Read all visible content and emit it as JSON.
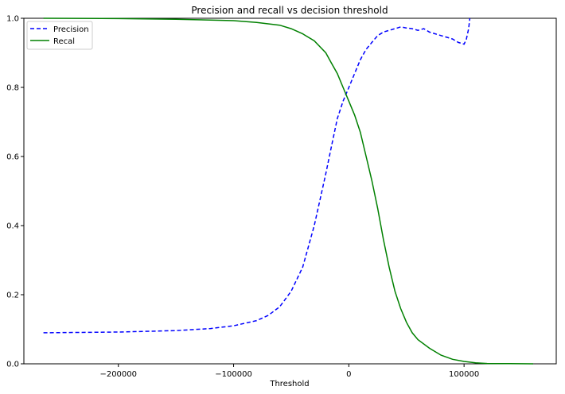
{
  "chart_data": {
    "type": "line",
    "title": "Precision and recall vs decision threshold",
    "xlabel": "Threshold",
    "ylabel": "",
    "xlim": [
      -282000,
      180000
    ],
    "ylim": [
      0,
      1
    ],
    "x_ticks": [
      -200000,
      -100000,
      0,
      100000
    ],
    "x_tick_labels": [
      "−200000",
      "−100000",
      "0",
      "100000"
    ],
    "y_ticks": [
      0.0,
      0.2,
      0.4,
      0.6,
      0.8,
      1.0
    ],
    "y_tick_labels": [
      "0.0",
      "0.2",
      "0.4",
      "0.6",
      "0.8",
      "1.0"
    ],
    "grid": false,
    "legend_position": "top-left",
    "series": [
      {
        "name": "Precision",
        "color": "#0000ff",
        "style": "dashed",
        "x": [
          -265000,
          -200000,
          -150000,
          -120000,
          -100000,
          -80000,
          -70000,
          -60000,
          -50000,
          -40000,
          -30000,
          -20000,
          -15000,
          -10000,
          -5000,
          0,
          5000,
          10000,
          15000,
          20000,
          25000,
          30000,
          35000,
          40000,
          45000,
          50000,
          55000,
          60000,
          65000,
          70000,
          75000,
          80000,
          85000,
          90000,
          95000,
          100000,
          102000,
          104000,
          105000
        ],
        "values": [
          0.09,
          0.092,
          0.096,
          0.102,
          0.11,
          0.125,
          0.14,
          0.165,
          0.21,
          0.28,
          0.4,
          0.55,
          0.63,
          0.71,
          0.76,
          0.8,
          0.84,
          0.88,
          0.91,
          0.93,
          0.95,
          0.96,
          0.965,
          0.97,
          0.975,
          0.972,
          0.97,
          0.965,
          0.97,
          0.96,
          0.955,
          0.95,
          0.945,
          0.94,
          0.93,
          0.925,
          0.94,
          0.97,
          1.0
        ]
      },
      {
        "name": "Recal",
        "color": "#008000",
        "style": "solid",
        "x": [
          -265000,
          -200000,
          -150000,
          -120000,
          -100000,
          -80000,
          -60000,
          -50000,
          -40000,
          -30000,
          -20000,
          -15000,
          -10000,
          -5000,
          0,
          5000,
          10000,
          15000,
          20000,
          25000,
          30000,
          35000,
          40000,
          45000,
          50000,
          55000,
          60000,
          70000,
          80000,
          90000,
          100000,
          110000,
          120000,
          140000,
          160000
        ],
        "values": [
          1.0,
          0.999,
          0.997,
          0.995,
          0.993,
          0.988,
          0.98,
          0.97,
          0.955,
          0.935,
          0.9,
          0.87,
          0.84,
          0.8,
          0.76,
          0.72,
          0.67,
          0.6,
          0.53,
          0.45,
          0.36,
          0.28,
          0.21,
          0.16,
          0.12,
          0.09,
          0.07,
          0.045,
          0.025,
          0.013,
          0.007,
          0.003,
          0.001,
          0.0005,
          0.0
        ]
      }
    ]
  }
}
